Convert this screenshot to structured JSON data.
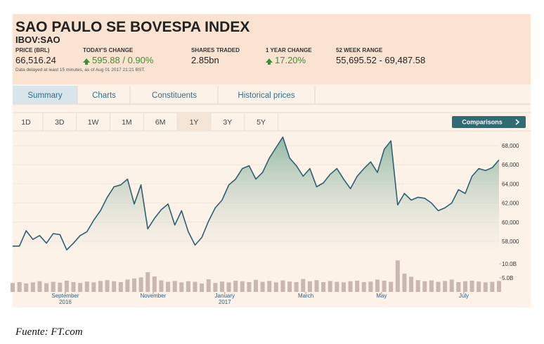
{
  "header": {
    "title": "SAO PAULO SE BOVESPA INDEX",
    "symbol": "IBOV:SAO",
    "stats": [
      {
        "label": "PRICE (BRL)",
        "value": "66,516.24"
      },
      {
        "label": "TODAY'S CHANGE",
        "value": "595.88 / 0.90%"
      },
      {
        "label": "SHARES TRADED",
        "value": "2.85bn"
      },
      {
        "label": "1 YEAR CHANGE",
        "value": "17.20%"
      },
      {
        "label": "52 WEEK RANGE",
        "value": "55,695.52 - 69,487.58"
      }
    ],
    "note": "Data delayed at least 15 minutes, as of Aug 01 2017 21:21 BST."
  },
  "tabs": [
    "Summary",
    "Charts",
    "Constituents",
    "Historical prices"
  ],
  "ranges": [
    "1D",
    "3D",
    "1W",
    "1M",
    "6M",
    "1Y",
    "3Y",
    "5Y"
  ],
  "comparisons_button": "Comparisons",
  "chart_data": {
    "type": "line",
    "color": "#2e6070",
    "values": [
      57500,
      57500,
      59100,
      58200,
      58600,
      57800,
      58800,
      58700,
      57100,
      57800,
      58600,
      59000,
      60200,
      61200,
      62600,
      63700,
      63900,
      64500,
      61900,
      63900,
      59300,
      60400,
      61300,
      61900,
      59700,
      61200,
      59000,
      57600,
      58400,
      60100,
      61500,
      62300,
      63900,
      64500,
      65600,
      65900,
      64500,
      65200,
      66700,
      67800,
      68900,
      66700,
      65900,
      64800,
      65600,
      63700,
      64100,
      65000,
      65600,
      64500,
      63500,
      64800,
      65600,
      66300,
      65200,
      67600,
      68500,
      61800,
      63000,
      62300,
      62600,
      62500,
      62000,
      61200,
      61500,
      62000,
      63400,
      63000,
      64800,
      65600,
      65400,
      65700,
      66500
    ],
    "ylim": [
      57000,
      69000
    ],
    "yticks": [
      {
        "value": 58000,
        "label": "58,000"
      },
      {
        "value": 60000,
        "label": "60,000"
      },
      {
        "value": 62000,
        "label": "62,000"
      },
      {
        "value": 64000,
        "label": "64,000"
      },
      {
        "value": 66000,
        "label": "66,000"
      },
      {
        "value": 68000,
        "label": "68,000"
      }
    ],
    "volume": {
      "color": "#c9b8b2",
      "values": [
        3.2,
        3.5,
        3.0,
        3.4,
        3.8,
        3.1,
        3.6,
        3.3,
        4.0,
        3.5,
        3.2,
        3.7,
        3.4,
        3.9,
        4.2,
        3.8,
        3.5,
        4.4,
        4.8,
        5.2,
        7.0,
        5.5,
        4.1,
        3.6,
        3.9,
        3.4,
        3.8,
        3.6,
        3.0,
        4.5,
        3.2,
        3.7,
        3.4,
        4.0,
        3.8,
        3.5,
        4.3,
        3.6,
        3.9,
        3.4,
        4.1,
        3.7,
        3.5,
        4.6,
        3.8,
        4.2,
        3.5,
        3.9,
        3.6,
        3.4,
        3.8,
        4.0,
        3.5,
        3.7,
        4.4,
        4.0,
        3.6,
        11.2,
        6.5,
        5.4,
        4.2,
        3.8,
        4.1,
        3.6,
        3.9,
        4.4,
        3.5,
        3.8,
        4.0,
        3.7,
        3.4,
        3.6,
        3.9
      ]
    },
    "y2lim": [
      0,
      11
    ],
    "y2ticks": [
      {
        "value": 5,
        "label": "5.0B"
      },
      {
        "value": 10,
        "label": "10.0B"
      }
    ],
    "xticks": [
      {
        "value": 7.8,
        "label": [
          "September",
          "2016"
        ]
      },
      {
        "value": 20.8,
        "label": [
          "November"
        ]
      },
      {
        "value": 31.4,
        "label": [
          "January",
          "2017"
        ]
      },
      {
        "value": 43.4,
        "label": [
          "March"
        ]
      },
      {
        "value": 54.6,
        "label": [
          "May"
        ]
      },
      {
        "value": 66.8,
        "label": [
          "July"
        ]
      }
    ],
    "grid": true
  },
  "caption": "Fuente: FT.com"
}
